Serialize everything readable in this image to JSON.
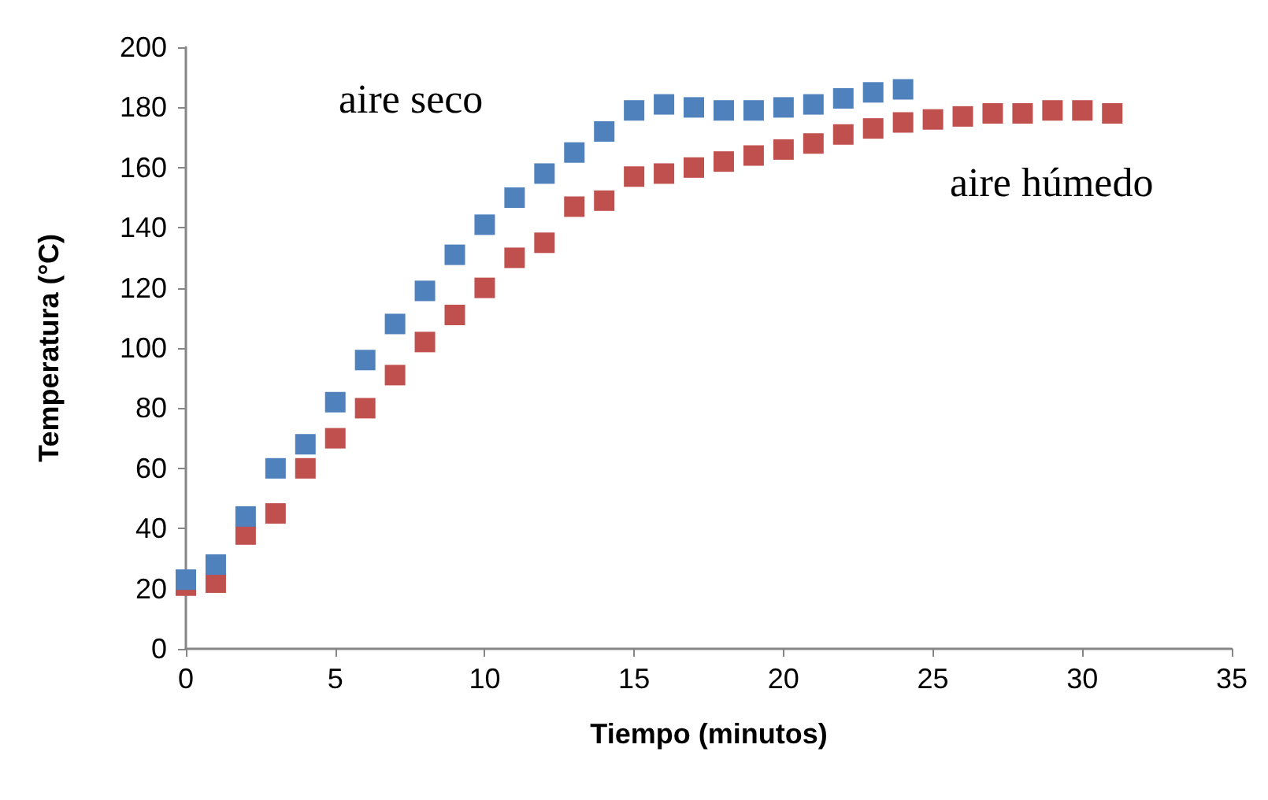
{
  "chart_data": {
    "type": "scatter",
    "xlabel": "Tiempo (minutos)",
    "ylabel": "Temperatura (°C)",
    "xlim": [
      0,
      35
    ],
    "xticks": [
      0,
      5,
      10,
      15,
      20,
      25,
      30,
      35
    ],
    "ylim": [
      0,
      200
    ],
    "yticks": [
      0,
      20,
      40,
      60,
      80,
      100,
      120,
      140,
      160,
      180,
      200
    ],
    "grid": false,
    "legend": false,
    "marker": "square",
    "series": [
      {
        "name": "aire seco",
        "color": "#4f81bd",
        "x": [
          0,
          1,
          2,
          3,
          4,
          5,
          6,
          7,
          8,
          9,
          10,
          11,
          12,
          13,
          14,
          15,
          16,
          17,
          18,
          19,
          20,
          21,
          22,
          23,
          24
        ],
        "values": [
          23,
          28,
          44,
          60,
          68,
          82,
          96,
          108,
          119,
          131,
          141,
          150,
          158,
          165,
          172,
          179,
          181,
          180,
          179,
          179,
          180,
          181,
          183,
          185,
          186
        ]
      },
      {
        "name": "aire húmedo",
        "color": "#c0504d",
        "x": [
          0,
          1,
          2,
          3,
          4,
          5,
          6,
          7,
          8,
          9,
          10,
          11,
          12,
          13,
          14,
          15,
          16,
          17,
          18,
          19,
          20,
          21,
          22,
          23,
          24,
          25,
          26,
          27,
          28,
          29,
          30,
          31
        ],
        "values": [
          21,
          22,
          38,
          45,
          60,
          70,
          80,
          91,
          102,
          111,
          120,
          130,
          135,
          147,
          149,
          157,
          158,
          160,
          162,
          164,
          166,
          168,
          171,
          173,
          175,
          176,
          177,
          178,
          178,
          179,
          179,
          178
        ]
      }
    ]
  }
}
